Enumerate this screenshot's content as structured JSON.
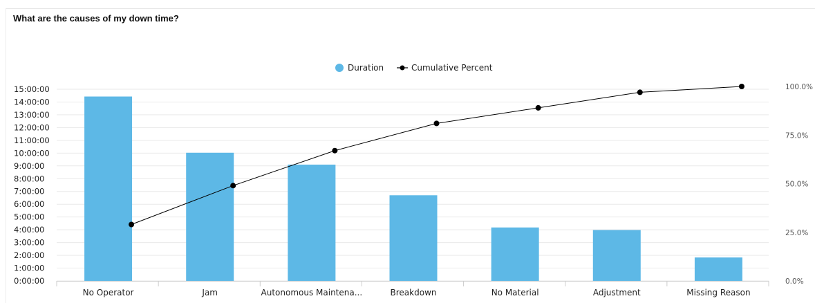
{
  "title": "What are the causes of my down time?",
  "colors": {
    "bar": "#5db8e6",
    "line": "#000000",
    "grid": "#e9e9e9"
  },
  "chart_data": {
    "type": "bar",
    "categories": [
      "No Operator",
      "Jam",
      "Autonomous Maintena...",
      "Breakdown",
      "No Material",
      "Adjustment",
      "Missing Reason"
    ],
    "series": [
      {
        "name": "Duration",
        "type": "bar",
        "axis": "left",
        "values_hours": [
          14.43,
          10.03,
          9.1,
          6.7,
          4.18,
          3.98,
          1.83
        ]
      },
      {
        "name": "Cumulative Percent",
        "type": "line",
        "axis": "right",
        "values_percent": [
          29,
          49,
          67,
          81,
          89,
          97,
          100
        ]
      }
    ],
    "y_left": {
      "ticks": [
        "0:00:00",
        "1:00:00",
        "2:00:00",
        "3:00:00",
        "4:00:00",
        "5:00:00",
        "6:00:00",
        "7:00:00",
        "8:00:00",
        "9:00:00",
        "10:00:00",
        "11:00:00",
        "12:00:00",
        "13:00:00",
        "14:00:00",
        "15:00:00"
      ],
      "range_hours": [
        0,
        15
      ]
    },
    "y_right": {
      "ticks": [
        "0.0%",
        "25.0%",
        "50.0%",
        "75.0%",
        "100.0%"
      ],
      "range_percent": [
        0,
        100
      ]
    },
    "legend": {
      "position": "top-center",
      "items": [
        "Duration",
        "Cumulative Percent"
      ]
    },
    "grid": true
  }
}
